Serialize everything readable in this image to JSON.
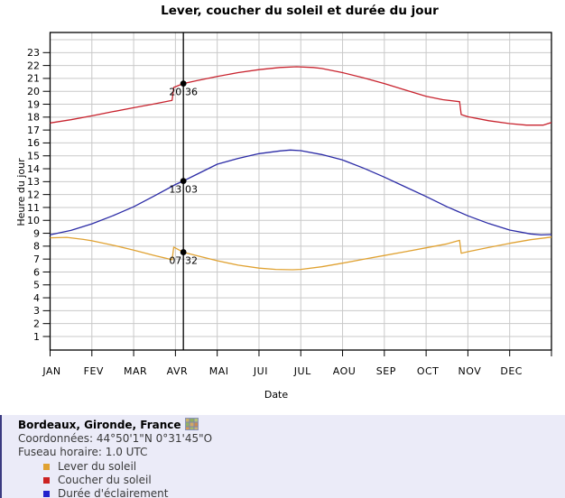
{
  "chart": {
    "title": "Lever, coucher du soleil et durée du jour"
  },
  "chart_data": {
    "type": "line",
    "title": "Lever, coucher du soleil et durée du jour",
    "xlabel": "Date",
    "ylabel": "Heure du jour",
    "xlim": [
      0,
      12
    ],
    "ylim": [
      -0.05,
      24.56
    ],
    "grid": true,
    "x_tick_labels": [
      "JAN",
      "FEV",
      "MAR",
      "AVR",
      "MAI",
      "JUI",
      "JUL",
      "AOU",
      "SEP",
      "OCT",
      "NOV",
      "DEC"
    ],
    "y_ticks": [
      1,
      2,
      3,
      4,
      5,
      6,
      7,
      8,
      9,
      10,
      11,
      12,
      13,
      14,
      15,
      16,
      17,
      18,
      19,
      20,
      21,
      22,
      23
    ],
    "colors": {
      "grid": "#C9C9C9",
      "border": "#000000",
      "marker": "#000000"
    },
    "series": [
      {
        "name": "Lever du soleil",
        "color": "#E0A232",
        "points": [
          [
            0,
            8.65
          ],
          [
            0.4,
            8.68
          ],
          [
            0.8,
            8.52
          ],
          [
            1,
            8.42
          ],
          [
            1.5,
            8.08
          ],
          [
            2,
            7.7
          ],
          [
            2.5,
            7.28
          ],
          [
            2.92,
            6.95
          ],
          [
            2.96,
            7.93
          ],
          [
            3.19,
            7.53
          ],
          [
            3.5,
            7.27
          ],
          [
            4,
            6.87
          ],
          [
            4.5,
            6.53
          ],
          [
            5,
            6.3
          ],
          [
            5.4,
            6.2
          ],
          [
            5.8,
            6.17
          ],
          [
            6,
            6.2
          ],
          [
            6.5,
            6.4
          ],
          [
            7,
            6.68
          ],
          [
            7.5,
            6.98
          ],
          [
            8,
            7.28
          ],
          [
            8.5,
            7.57
          ],
          [
            9,
            7.87
          ],
          [
            9.5,
            8.18
          ],
          [
            9.8,
            8.45
          ],
          [
            9.84,
            7.45
          ],
          [
            10,
            7.57
          ],
          [
            10.5,
            7.9
          ],
          [
            11,
            8.22
          ],
          [
            11.5,
            8.5
          ],
          [
            12,
            8.7
          ]
        ]
      },
      {
        "name": "Coucher du soleil",
        "color": "#C8232E",
        "points": [
          [
            0,
            17.55
          ],
          [
            0.5,
            17.8
          ],
          [
            1,
            18.1
          ],
          [
            1.5,
            18.42
          ],
          [
            2,
            18.73
          ],
          [
            2.5,
            19.03
          ],
          [
            2.92,
            19.3
          ],
          [
            2.96,
            20.3
          ],
          [
            3.19,
            20.6
          ],
          [
            3.5,
            20.82
          ],
          [
            4,
            21.15
          ],
          [
            4.5,
            21.45
          ],
          [
            5,
            21.68
          ],
          [
            5.5,
            21.85
          ],
          [
            5.9,
            21.9
          ],
          [
            6.3,
            21.85
          ],
          [
            6.5,
            21.77
          ],
          [
            7,
            21.45
          ],
          [
            7.5,
            21.05
          ],
          [
            8,
            20.6
          ],
          [
            8.5,
            20.1
          ],
          [
            9,
            19.62
          ],
          [
            9.4,
            19.35
          ],
          [
            9.8,
            19.2
          ],
          [
            9.84,
            18.2
          ],
          [
            10,
            18.03
          ],
          [
            10.5,
            17.72
          ],
          [
            11,
            17.5
          ],
          [
            11.4,
            17.38
          ],
          [
            11.8,
            17.38
          ],
          [
            12,
            17.58
          ]
        ]
      },
      {
        "name": "Durée d'éclairement",
        "color": "#2B2BA6",
        "points": [
          [
            0,
            8.88
          ],
          [
            0.5,
            9.22
          ],
          [
            1,
            9.73
          ],
          [
            1.5,
            10.35
          ],
          [
            2,
            11.05
          ],
          [
            2.5,
            11.9
          ],
          [
            3,
            12.78
          ],
          [
            3.19,
            13.05
          ],
          [
            3.5,
            13.55
          ],
          [
            4,
            14.35
          ],
          [
            4.5,
            14.8
          ],
          [
            5,
            15.17
          ],
          [
            5.5,
            15.38
          ],
          [
            5.75,
            15.45
          ],
          [
            6,
            15.4
          ],
          [
            6.5,
            15.1
          ],
          [
            7,
            14.68
          ],
          [
            7.5,
            14.05
          ],
          [
            8,
            13.35
          ],
          [
            8.5,
            12.6
          ],
          [
            9,
            11.85
          ],
          [
            9.5,
            11.05
          ],
          [
            10,
            10.35
          ],
          [
            10.5,
            9.75
          ],
          [
            11,
            9.25
          ],
          [
            11.5,
            8.95
          ],
          [
            11.75,
            8.87
          ],
          [
            12,
            8.9
          ]
        ]
      }
    ],
    "date_marker": {
      "x": 3.19,
      "points": [
        {
          "series": "Coucher du soleil",
          "value": 20.6,
          "label": "20:36"
        },
        {
          "series": "Durée d'éclairement",
          "value": 13.05,
          "label": "13:03"
        },
        {
          "series": "Lever du soleil",
          "value": 7.53,
          "label": "07:32"
        }
      ]
    }
  },
  "info_panel": {
    "background": "#EBEBF8",
    "accent_border": "#3A3A80",
    "location": "Bordeaux, Gironde, France",
    "coordinates": "Coordonnées: 44°50'1\"N 0°31'45\"O",
    "timezone": "Fuseau horaire: 1.0 UTC",
    "legend": [
      {
        "label": "Lever du soleil",
        "color": "#E0A232"
      },
      {
        "label": "Coucher du soleil",
        "color": "#CC2222"
      },
      {
        "label": "Durée d'éclairement",
        "color": "#2222CC"
      }
    ]
  }
}
